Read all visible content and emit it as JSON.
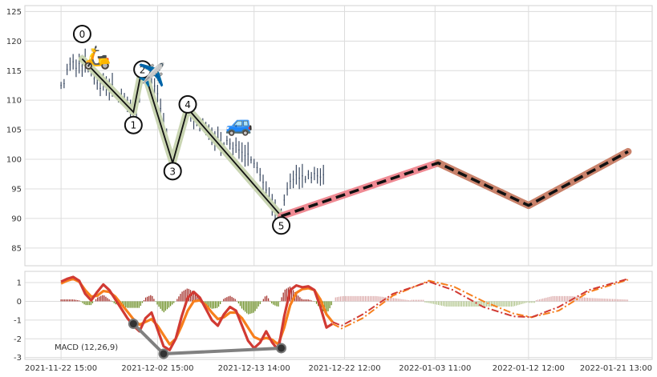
{
  "chart_data": [
    {
      "type": "line",
      "panel": "price",
      "x_tick_labels": [
        "2021-11-22 15:00",
        "2021-12-02 15:00",
        "2021-12-13 14:00",
        "2021-12-22 12:00",
        "2022-01-03 11:00",
        "2022-01-12 12:00",
        "2022-01-21 13:00"
      ],
      "y_ticks": [
        85,
        90,
        95,
        100,
        105,
        110,
        115,
        120,
        125
      ],
      "ylim": [
        82,
        126
      ],
      "grid": true,
      "price_series": [
        [
          0,
          112.5
        ],
        [
          1,
          112.8
        ],
        [
          2,
          115.2
        ],
        [
          3,
          116.1
        ],
        [
          4,
          116.5
        ],
        [
          5,
          115.4
        ],
        [
          6,
          116.2
        ],
        [
          7,
          115.8
        ],
        [
          8,
          116.7
        ],
        [
          9,
          115.3
        ],
        [
          10,
          114.8
        ],
        [
          11,
          113.6
        ],
        [
          12,
          112.9
        ],
        [
          13,
          112.0
        ],
        [
          14,
          113.1
        ],
        [
          15,
          112.4
        ],
        [
          16,
          111.8
        ],
        [
          17,
          112.6
        ],
        [
          18,
          111.2
        ],
        [
          19,
          110.4
        ],
        [
          20,
          111.0
        ],
        [
          21,
          110.1
        ],
        [
          22,
          109.3
        ],
        [
          23,
          108.6
        ],
        [
          24,
          108.0
        ],
        [
          25,
          108.9
        ],
        [
          26,
          111.6
        ],
        [
          27,
          114.2
        ],
        [
          28,
          115.8
        ],
        [
          29,
          114.6
        ],
        [
          30,
          113.0
        ],
        [
          31,
          112.4
        ],
        [
          32,
          111.1
        ],
        [
          33,
          108.6
        ],
        [
          34,
          106.0
        ],
        [
          35,
          103.2
        ],
        [
          36,
          101.0
        ],
        [
          37,
          99.4
        ],
        [
          38,
          100.6
        ],
        [
          39,
          102.8
        ],
        [
          40,
          105.0
        ],
        [
          41,
          107.0
        ],
        [
          42,
          108.6
        ],
        [
          43,
          108.2
        ],
        [
          44,
          107.1
        ],
        [
          45,
          106.2
        ],
        [
          46,
          105.5
        ],
        [
          47,
          106.0
        ],
        [
          48,
          105.2
        ],
        [
          49,
          104.6
        ],
        [
          50,
          103.9
        ],
        [
          51,
          103.1
        ],
        [
          52,
          103.7
        ],
        [
          53,
          102.6
        ],
        [
          54,
          102.3
        ],
        [
          55,
          103.2
        ],
        [
          56,
          102.6
        ],
        [
          57,
          101.8
        ],
        [
          58,
          102.4
        ],
        [
          59,
          101.6
        ],
        [
          60,
          101.2
        ],
        [
          61,
          100.6
        ],
        [
          62,
          100.9
        ],
        [
          63,
          99.9
        ],
        [
          64,
          99.3
        ],
        [
          65,
          98.6
        ],
        [
          66,
          97.4
        ],
        [
          67,
          96.1
        ],
        [
          68,
          94.8
        ],
        [
          69,
          93.6
        ],
        [
          70,
          92.3
        ],
        [
          71,
          91.2
        ],
        [
          72,
          90.6
        ],
        [
          73,
          90.9
        ],
        [
          74,
          93.1
        ],
        [
          75,
          95.0
        ],
        [
          76,
          96.3
        ],
        [
          77,
          96.6
        ],
        [
          78,
          97.4
        ],
        [
          79,
          96.8
        ],
        [
          80,
          97.2
        ],
        [
          81,
          96.6
        ],
        [
          82,
          97.4
        ],
        [
          83,
          96.9
        ],
        [
          84,
          97.6
        ],
        [
          85,
          97.2
        ],
        [
          86,
          97.0
        ],
        [
          87,
          97.4
        ]
      ],
      "wave_points": [
        {
          "label": "0",
          "x": 7,
          "y": 117.0,
          "label_y": 121.2
        },
        {
          "label": "1",
          "x": 24,
          "y": 108.0,
          "label_y": 105.8
        },
        {
          "label": "2",
          "x": 27,
          "y": 115.8,
          "label_y": 115.2
        },
        {
          "label": "3",
          "x": 37,
          "y": 99.4,
          "label_y": 98.0
        },
        {
          "label": "4",
          "x": 42,
          "y": 108.6,
          "label_y": 109.3
        },
        {
          "label": "5",
          "x": 73,
          "y": 90.4,
          "label_y": 88.8
        }
      ],
      "forecast": [
        [
          73,
          90.4
        ],
        [
          125,
          99.4
        ],
        [
          155,
          92.2
        ],
        [
          188,
          101.3
        ]
      ],
      "icons": [
        {
          "name": "scooter-icon",
          "glyph": "🛵",
          "x": 12,
          "y": 117.6
        },
        {
          "name": "airplane-icon",
          "glyph": "✈️",
          "x": 30,
          "y": 114.6
        },
        {
          "name": "car-icon",
          "glyph": "🚙",
          "x": 59,
          "y": 106.4
        }
      ],
      "colors": {
        "price": "#3b4a62",
        "wave_halo": "#c9d5b2",
        "wave_line": "#111111",
        "forecast_halo_1": "#ef8a93",
        "forecast_halo_2": "#c9826b",
        "forecast_line": "#111111"
      }
    },
    {
      "type": "line",
      "panel": "macd",
      "annotation": "MACD (12,26,9)",
      "y_ticks": [
        -3,
        -2,
        -1,
        0,
        1
      ],
      "ylim": [
        -3.1,
        1.6
      ],
      "grid": true,
      "macd": [
        [
          0,
          1.05
        ],
        [
          2,
          1.2
        ],
        [
          4,
          1.3
        ],
        [
          6,
          1.1
        ],
        [
          8,
          0.4
        ],
        [
          10,
          0.05
        ],
        [
          12,
          0.5
        ],
        [
          14,
          0.9
        ],
        [
          16,
          0.6
        ],
        [
          18,
          0.1
        ],
        [
          20,
          -0.4
        ],
        [
          22,
          -0.9
        ],
        [
          24,
          -1.3
        ],
        [
          26,
          -1.6
        ],
        [
          28,
          -0.9
        ],
        [
          30,
          -0.6
        ],
        [
          32,
          -1.5
        ],
        [
          34,
          -2.4
        ],
        [
          36,
          -2.6
        ],
        [
          38,
          -2.0
        ],
        [
          40,
          -0.8
        ],
        [
          42,
          0.2
        ],
        [
          44,
          0.5
        ],
        [
          46,
          0.2
        ],
        [
          48,
          -0.4
        ],
        [
          50,
          -1.0
        ],
        [
          52,
          -1.3
        ],
        [
          54,
          -0.7
        ],
        [
          56,
          -0.3
        ],
        [
          58,
          -0.5
        ],
        [
          60,
          -1.3
        ],
        [
          62,
          -2.1
        ],
        [
          64,
          -2.5
        ],
        [
          66,
          -2.2
        ],
        [
          68,
          -1.6
        ],
        [
          70,
          -2.2
        ],
        [
          72,
          -2.6
        ],
        [
          74,
          -0.8
        ],
        [
          76,
          0.6
        ],
        [
          78,
          0.85
        ],
        [
          80,
          0.75
        ],
        [
          82,
          0.8
        ],
        [
          84,
          0.6
        ],
        [
          86,
          -0.3
        ],
        [
          88,
          -1.4
        ],
        [
          90,
          -1.2
        ]
      ],
      "signal": [
        [
          0,
          0.95
        ],
        [
          2,
          1.1
        ],
        [
          4,
          1.2
        ],
        [
          6,
          1.05
        ],
        [
          8,
          0.6
        ],
        [
          10,
          0.25
        ],
        [
          12,
          0.3
        ],
        [
          14,
          0.55
        ],
        [
          16,
          0.5
        ],
        [
          18,
          0.25
        ],
        [
          20,
          -0.15
        ],
        [
          22,
          -0.55
        ],
        [
          24,
          -0.95
        ],
        [
          26,
          -1.25
        ],
        [
          28,
          -1.1
        ],
        [
          30,
          -0.95
        ],
        [
          32,
          -1.3
        ],
        [
          34,
          -1.8
        ],
        [
          36,
          -2.3
        ],
        [
          38,
          -2.0
        ],
        [
          40,
          -1.3
        ],
        [
          42,
          -0.5
        ],
        [
          44,
          0.0
        ],
        [
          46,
          0.05
        ],
        [
          48,
          -0.2
        ],
        [
          50,
          -0.6
        ],
        [
          52,
          -0.95
        ],
        [
          54,
          -0.85
        ],
        [
          56,
          -0.6
        ],
        [
          58,
          -0.6
        ],
        [
          60,
          -0.9
        ],
        [
          62,
          -1.4
        ],
        [
          64,
          -1.9
        ],
        [
          66,
          -2.05
        ],
        [
          68,
          -1.95
        ],
        [
          70,
          -2.05
        ],
        [
          72,
          -2.3
        ],
        [
          74,
          -1.4
        ],
        [
          76,
          -0.2
        ],
        [
          78,
          0.45
        ],
        [
          80,
          0.65
        ],
        [
          82,
          0.7
        ],
        [
          84,
          0.6
        ],
        [
          86,
          0.1
        ],
        [
          88,
          -0.7
        ],
        [
          90,
          -1.1
        ]
      ],
      "histogram": [
        [
          0,
          0.1
        ],
        [
          2,
          0.1
        ],
        [
          4,
          0.1
        ],
        [
          6,
          0.05
        ],
        [
          8,
          -0.2
        ],
        [
          10,
          -0.2
        ],
        [
          12,
          0.2
        ],
        [
          14,
          0.35
        ],
        [
          16,
          0.1
        ],
        [
          18,
          -0.15
        ],
        [
          20,
          -0.25
        ],
        [
          22,
          -0.35
        ],
        [
          24,
          -0.35
        ],
        [
          26,
          -0.35
        ],
        [
          28,
          0.2
        ],
        [
          30,
          0.35
        ],
        [
          32,
          -0.2
        ],
        [
          34,
          -0.6
        ],
        [
          36,
          -0.3
        ],
        [
          38,
          0.0
        ],
        [
          40,
          0.5
        ],
        [
          42,
          0.7
        ],
        [
          44,
          0.5
        ],
        [
          46,
          0.15
        ],
        [
          48,
          -0.2
        ],
        [
          50,
          -0.4
        ],
        [
          52,
          -0.35
        ],
        [
          54,
          0.15
        ],
        [
          56,
          0.3
        ],
        [
          58,
          0.1
        ],
        [
          60,
          -0.4
        ],
        [
          62,
          -0.7
        ],
        [
          64,
          -0.6
        ],
        [
          66,
          -0.15
        ],
        [
          68,
          0.35
        ],
        [
          70,
          -0.15
        ],
        [
          72,
          -0.3
        ],
        [
          74,
          0.6
        ],
        [
          76,
          0.8
        ],
        [
          78,
          0.4
        ],
        [
          80,
          0.1
        ],
        [
          82,
          0.1
        ],
        [
          84,
          0.0
        ],
        [
          86,
          -0.4
        ],
        [
          88,
          -0.7
        ],
        [
          90,
          -0.1
        ]
      ],
      "forecast_macd": [
        [
          90,
          -1.1
        ],
        [
          93,
          -1.3
        ],
        [
          100,
          -0.7
        ],
        [
          110,
          0.4
        ],
        [
          122,
          1.05
        ],
        [
          130,
          0.6
        ],
        [
          140,
          -0.3
        ],
        [
          150,
          -0.8
        ],
        [
          156,
          -0.85
        ],
        [
          165,
          -0.3
        ],
        [
          175,
          0.6
        ],
        [
          188,
          1.2
        ]
      ],
      "forecast_signal": [
        [
          90,
          -1.2
        ],
        [
          93,
          -1.45
        ],
        [
          100,
          -0.9
        ],
        [
          110,
          0.3
        ],
        [
          122,
          1.1
        ],
        [
          130,
          0.8
        ],
        [
          140,
          0.0
        ],
        [
          150,
          -0.65
        ],
        [
          156,
          -0.85
        ],
        [
          165,
          -0.5
        ],
        [
          175,
          0.5
        ],
        [
          188,
          1.15
        ]
      ],
      "forecast_histogram_amplitude": 0.28,
      "divergence_points": [
        [
          24,
          -1.2
        ],
        [
          34,
          -2.8
        ],
        [
          73,
          -2.5
        ]
      ],
      "colors": {
        "macd": "#d13a33",
        "signal": "#f77f1c",
        "hist_pos": "#a5342f",
        "hist_neg": "#6b8e23",
        "divergence": "#808080"
      }
    }
  ]
}
